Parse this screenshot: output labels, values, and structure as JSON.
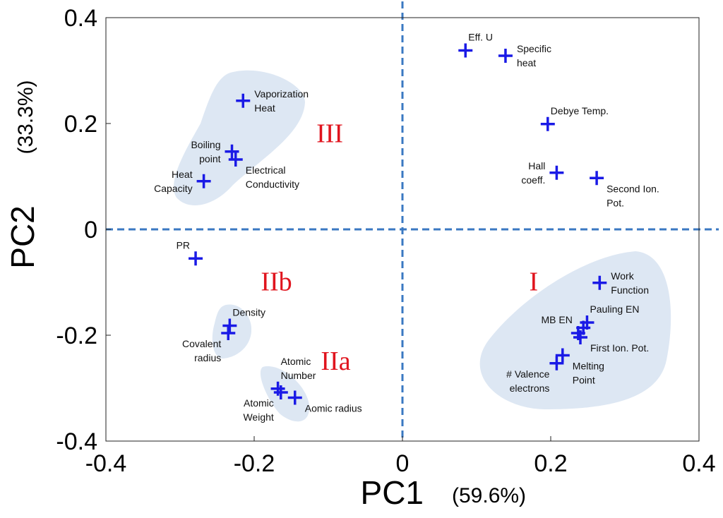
{
  "chart_data": {
    "type": "scatter",
    "xlabel": "PC1",
    "xlabel_pct": "(59.6%)",
    "ylabel": "PC2",
    "ylabel_pct": "(33.3%)",
    "xlim": [
      -0.4,
      0.4
    ],
    "ylim": [
      -0.4,
      0.4
    ],
    "xticks": [
      {
        "value": -0.4,
        "label": "-0.4"
      },
      {
        "value": -0.2,
        "label": "-0.2"
      },
      {
        "value": 0,
        "label": "0"
      },
      {
        "value": 0.2,
        "label": "0.2"
      },
      {
        "value": 0.4,
        "label": "0.4"
      }
    ],
    "yticks": [
      {
        "value": 0.4,
        "label": "0.4"
      },
      {
        "value": 0.2,
        "label": "0.2"
      },
      {
        "value": 0,
        "label": "0"
      },
      {
        "value": -0.2,
        "label": "-0.2"
      },
      {
        "value": -0.4,
        "label": "-0.4"
      }
    ],
    "colors": {
      "marker": "#1a1ae6",
      "zero_line": "#3a78c2",
      "group_label": "#e0141e",
      "group_fill": "#dde7f3"
    },
    "points": [
      {
        "label": [
          "Eff. U"
        ],
        "x": 0.085,
        "y": 0.338,
        "anchor": "ne"
      },
      {
        "label": [
          "Specific",
          "heat"
        ],
        "x": 0.139,
        "y": 0.328,
        "anchor": "e"
      },
      {
        "label": [
          "Debye Temp."
        ],
        "x": 0.196,
        "y": 0.199,
        "anchor": "ne"
      },
      {
        "label": [
          "Hall",
          "coeff."
        ],
        "x": 0.208,
        "y": 0.107,
        "anchor": "w"
      },
      {
        "label": [
          "Second Ion.",
          "Pot."
        ],
        "x": 0.262,
        "y": 0.097,
        "anchor": "se"
      },
      {
        "label": [
          "Vaporization",
          "Heat"
        ],
        "x": -0.215,
        "y": 0.243,
        "anchor": "e"
      },
      {
        "label": [
          "Boiling",
          "point"
        ],
        "x": -0.23,
        "y": 0.147,
        "anchor": "w"
      },
      {
        "label": [
          "Electrical",
          "Conductivity"
        ],
        "x": -0.225,
        "y": 0.132,
        "anchor": "se"
      },
      {
        "label": [
          "Heat",
          "Capacity"
        ],
        "x": -0.268,
        "y": 0.091,
        "anchor": "w"
      },
      {
        "label": [
          "PR"
        ],
        "x": -0.279,
        "y": -0.055,
        "anchor": "nw"
      },
      {
        "label": [
          "Work",
          "Function"
        ],
        "x": 0.266,
        "y": -0.101,
        "anchor": "e"
      },
      {
        "label": [
          "Pauling EN"
        ],
        "x": 0.249,
        "y": -0.176,
        "anchor": "ne"
      },
      {
        "label": [],
        "x": 0.244,
        "y": -0.186,
        "anchor": "e"
      },
      {
        "label": [
          "MB EN"
        ],
        "x": 0.237,
        "y": -0.196,
        "anchor": "nw"
      },
      {
        "label": [
          "First Ion. Pot."
        ],
        "x": 0.24,
        "y": -0.204,
        "anchor": "se"
      },
      {
        "label": [
          "Melting",
          "Point"
        ],
        "x": 0.216,
        "y": -0.238,
        "anchor": "se"
      },
      {
        "label": [
          "# Valence",
          "electrons"
        ],
        "x": 0.208,
        "y": -0.253,
        "anchor": "sw"
      },
      {
        "label": [
          "Density"
        ],
        "x": -0.233,
        "y": -0.182,
        "anchor": "ne"
      },
      {
        "label": [
          "Covalent",
          "radius"
        ],
        "x": -0.235,
        "y": -0.196,
        "anchor": "sw"
      },
      {
        "label": [
          "Atomic",
          "Number"
        ],
        "x": -0.168,
        "y": -0.301,
        "anchor": "ne"
      },
      {
        "label": [
          "Atomic",
          "Weight"
        ],
        "x": -0.164,
        "y": -0.308,
        "anchor": "sw"
      },
      {
        "label": [
          "Aomic radius"
        ],
        "x": -0.145,
        "y": -0.318,
        "anchor": "se"
      }
    ],
    "groups": [
      {
        "name": "III",
        "label_x": -0.098,
        "label_y": 0.165
      },
      {
        "name": "IIb",
        "label_x": -0.17,
        "label_y": -0.115
      },
      {
        "name": "IIa",
        "label_x": -0.09,
        "label_y": -0.265
      },
      {
        "name": "I",
        "label_x": 0.177,
        "label_y": -0.115
      }
    ]
  }
}
